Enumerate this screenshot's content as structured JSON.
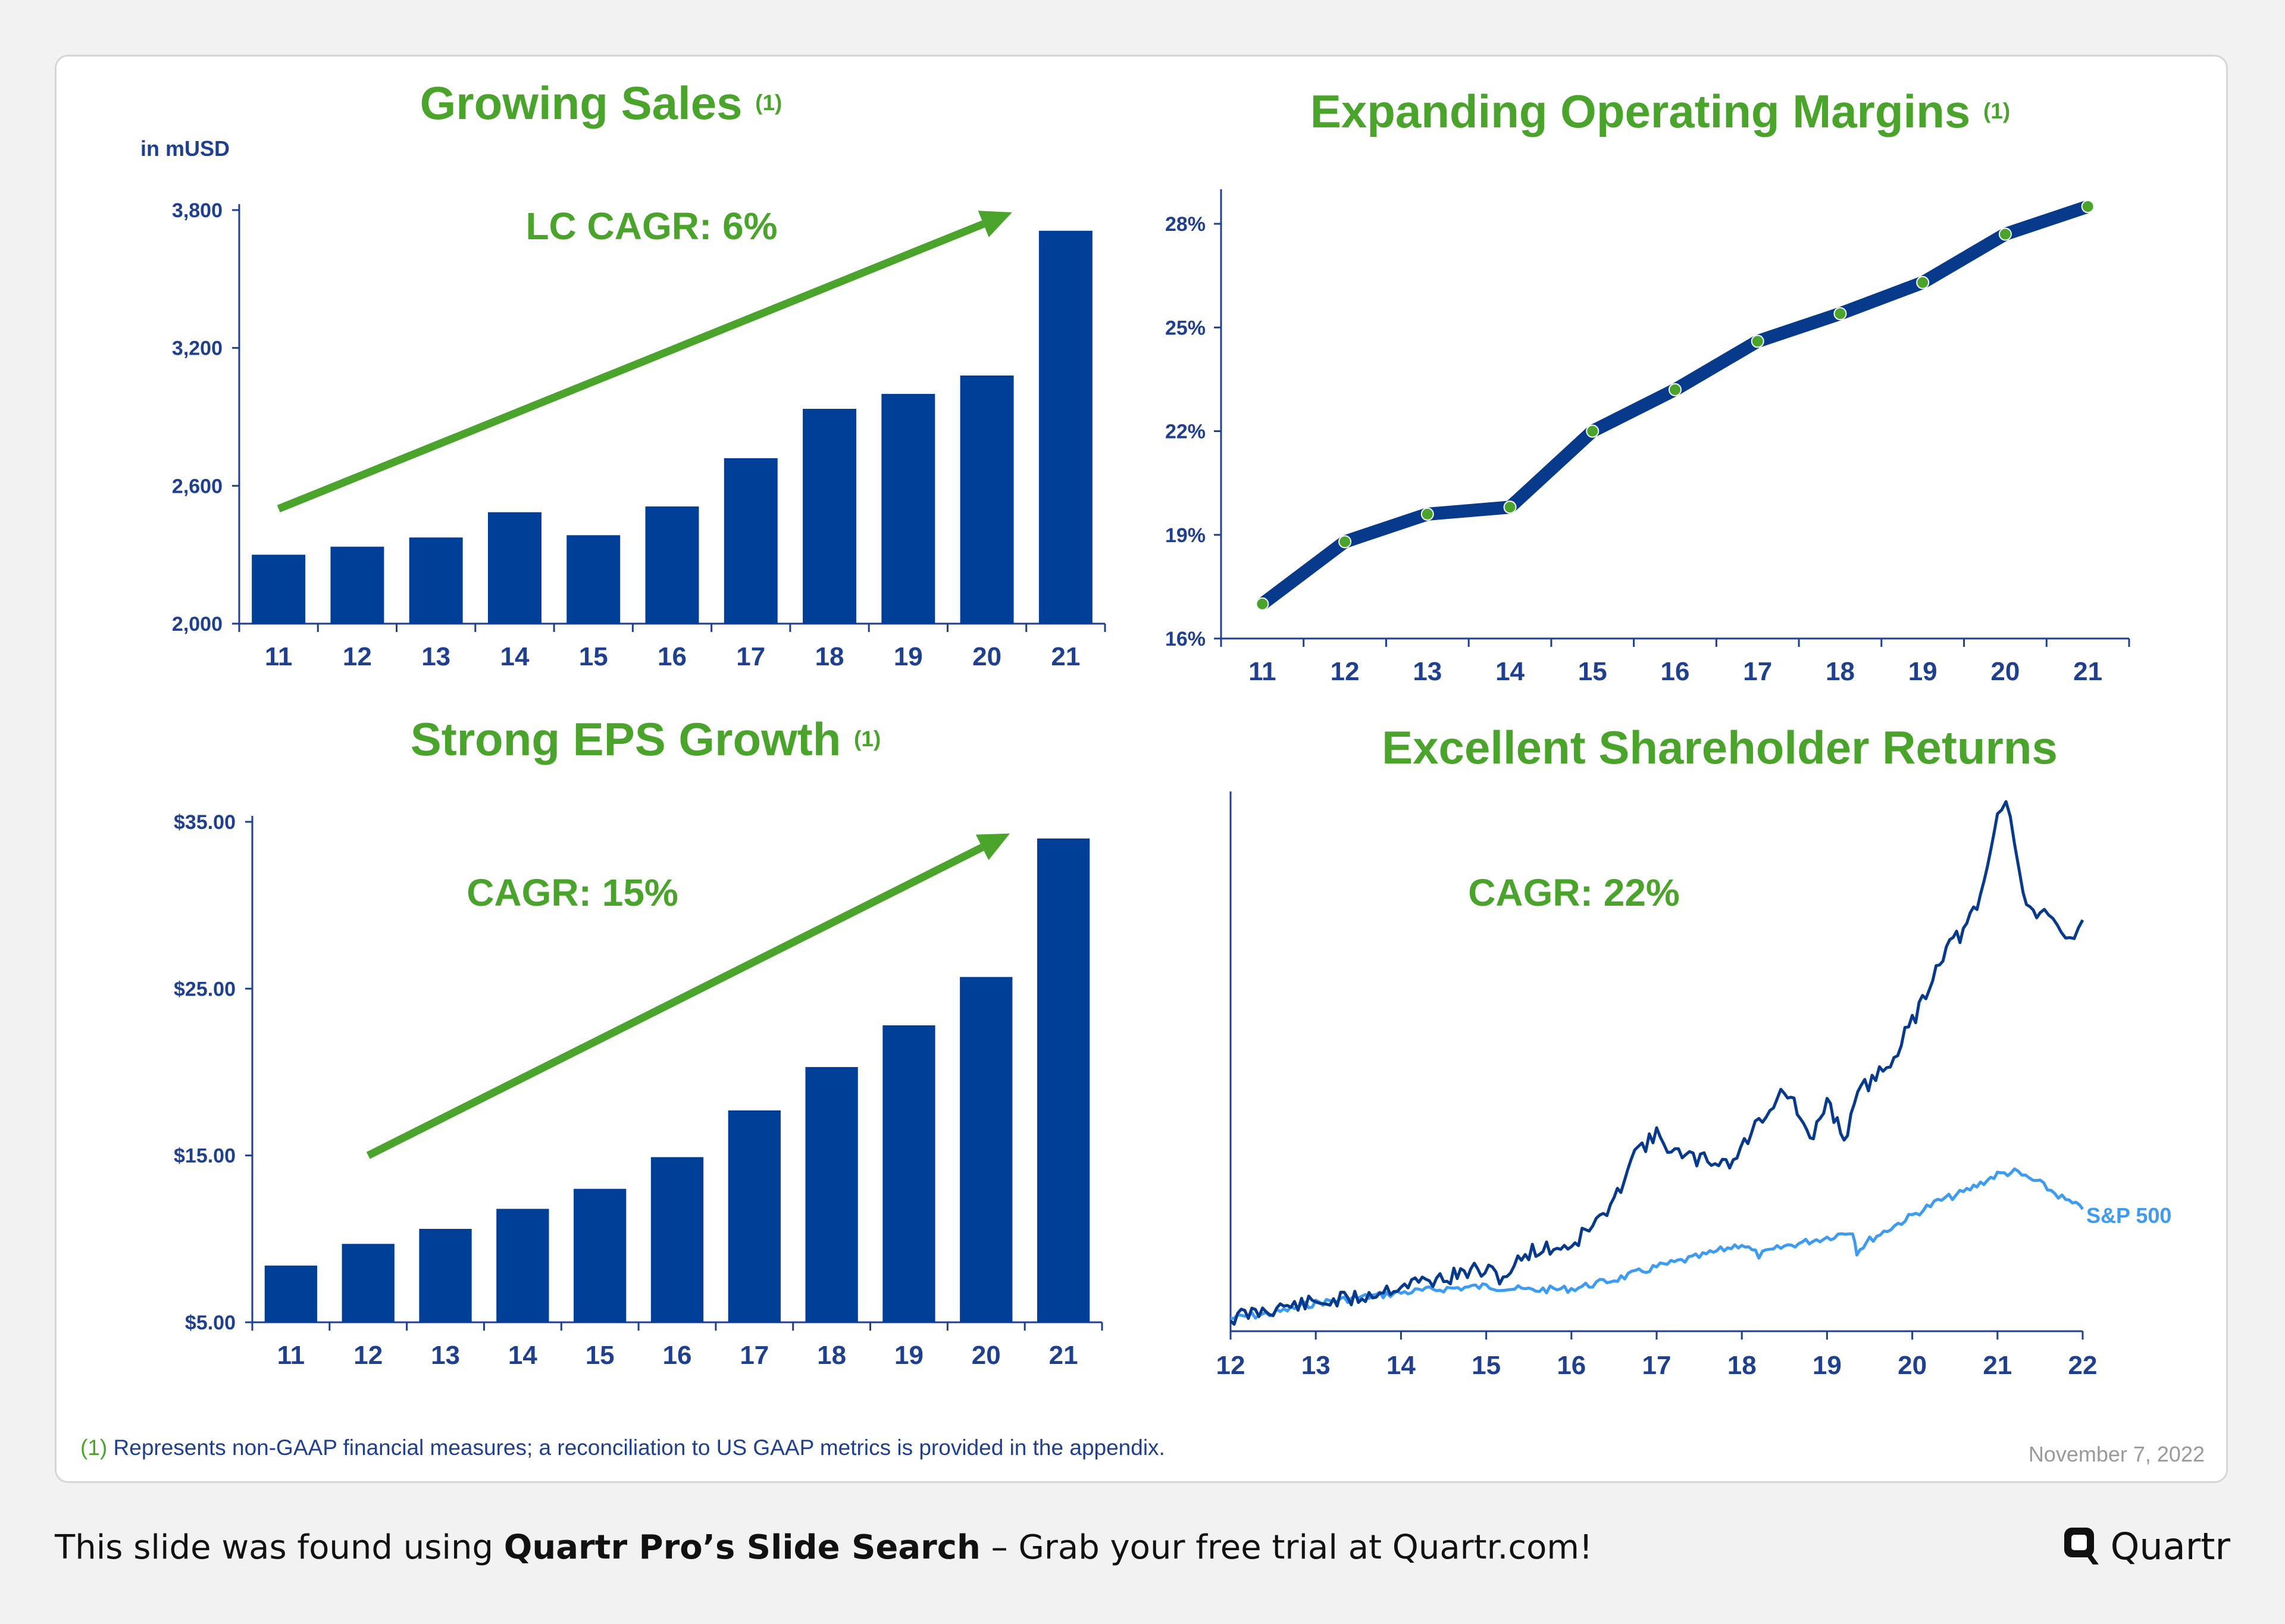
{
  "colors": {
    "bar": "#003f98",
    "green": "#4aa32b",
    "axis": "#1f3f8f",
    "line": "#083a8c",
    "sp500": "#3d9bf0"
  },
  "chart_data": [
    {
      "id": "sales",
      "type": "bar",
      "title": "Growing Sales",
      "title_note": "(1)",
      "unit_label": "in mUSD",
      "annotation": "LC CAGR: 6%",
      "categories": [
        "11",
        "12",
        "13",
        "14",
        "15",
        "16",
        "17",
        "18",
        "19",
        "20",
        "21"
      ],
      "values": [
        2300,
        2335,
        2375,
        2485,
        2385,
        2510,
        2720,
        2935,
        3000,
        3080,
        3710
      ],
      "ylim": [
        2000,
        3800
      ],
      "yticks": [
        2000,
        2600,
        3200,
        3800
      ],
      "ytick_labels": [
        "2,000",
        "2,600",
        "3,200",
        "3,800"
      ],
      "trend": {
        "from": [
          "11",
          2500
        ],
        "to": [
          "21",
          3790
        ]
      }
    },
    {
      "id": "margins",
      "type": "line",
      "title": "Expanding Operating Margins",
      "title_note": "(1)",
      "categories": [
        "11",
        "12",
        "13",
        "14",
        "15",
        "16",
        "17",
        "18",
        "19",
        "20",
        "21"
      ],
      "values": [
        17.0,
        18.8,
        19.6,
        19.8,
        22.0,
        23.2,
        24.6,
        25.4,
        26.3,
        27.7,
        28.5
      ],
      "ylim": [
        16,
        29
      ],
      "yticks": [
        16,
        19,
        22,
        25,
        28
      ],
      "ytick_labels": [
        "16%",
        "19%",
        "22%",
        "25%",
        "28%"
      ]
    },
    {
      "id": "eps",
      "type": "bar",
      "title": "Strong EPS Growth",
      "title_note": "(1)",
      "annotation": "CAGR: 15%",
      "categories": [
        "11",
        "12",
        "13",
        "14",
        "15",
        "16",
        "17",
        "18",
        "19",
        "20",
        "21"
      ],
      "values": [
        8.4,
        9.7,
        10.6,
        11.8,
        13.0,
        14.9,
        17.7,
        20.3,
        22.8,
        25.7,
        34.0
      ],
      "ylim": [
        5,
        35
      ],
      "yticks": [
        5,
        15,
        25,
        35
      ],
      "ytick_labels": [
        "$5.00",
        "$15.00",
        "$25.00",
        "$35.00"
      ],
      "trend": {
        "from": [
          "12",
          15.0
        ],
        "to": [
          "21",
          34.3
        ]
      }
    },
    {
      "id": "returns",
      "type": "line",
      "title": "Excellent Shareholder Returns",
      "annotation": "CAGR: 22%",
      "categories": [
        "12",
        "13",
        "14",
        "15",
        "16",
        "17",
        "18",
        "19",
        "20",
        "21",
        "22"
      ],
      "series": [
        {
          "name": "",
          "x": [
            12.0,
            12.5,
            13.0,
            13.5,
            14.0,
            14.5,
            14.9,
            15.2,
            15.5,
            16.0,
            16.5,
            16.7,
            17.0,
            17.3,
            17.6,
            17.9,
            18.2,
            18.5,
            18.65,
            18.8,
            19.0,
            19.2,
            19.4,
            19.7,
            20.0,
            20.2,
            20.4,
            20.6,
            20.8,
            21.0,
            21.1,
            21.2,
            21.3,
            21.5,
            21.6,
            21.7,
            21.8,
            21.9,
            22.0
          ],
          "y": [
            100,
            108,
            112,
            116,
            126,
            131,
            138,
            132,
            152,
            157,
            188,
            228,
            242,
            225,
            223,
            222,
            254,
            278,
            262,
            235,
            270,
            240,
            278,
            296,
            330,
            360,
            390,
            400,
            425,
            490,
            505,
            475,
            430,
            410,
            420,
            400,
            390,
            395,
            410
          ]
        },
        {
          "name": "S&P 500",
          "x": [
            12.0,
            12.5,
            13.0,
            13.5,
            14.0,
            14.5,
            15.0,
            15.5,
            16.0,
            16.5,
            17.0,
            17.5,
            18.0,
            18.2,
            18.5,
            19.0,
            19.3,
            19.35,
            19.5,
            20.0,
            20.3,
            20.6,
            21.0,
            21.2,
            21.5,
            21.8,
            22.0
          ],
          "y": [
            100,
            104,
            112,
            116,
            120,
            123,
            125,
            122,
            123,
            130,
            140,
            148,
            158,
            149,
            156,
            163,
            168,
            152,
            161,
            180,
            191,
            198,
            212,
            214,
            205,
            192,
            185
          ]
        }
      ],
      "ylim": [
        90,
        510
      ],
      "series_label": "S&P 500"
    }
  ],
  "footnote": {
    "mark": "(1)",
    "text": "Represents non-GAAP financial measures; a reconciliation to US GAAP metrics is provided in the appendix."
  },
  "date": "November 7, 2022",
  "promo": {
    "prefix": "This slide was found using ",
    "bold": "Quartr Pro’s Slide Search",
    "suffix": " – Grab your free trial at Quartr.com!"
  },
  "brand": {
    "name": "Quartr",
    "icon": "quartr-logo-icon"
  }
}
